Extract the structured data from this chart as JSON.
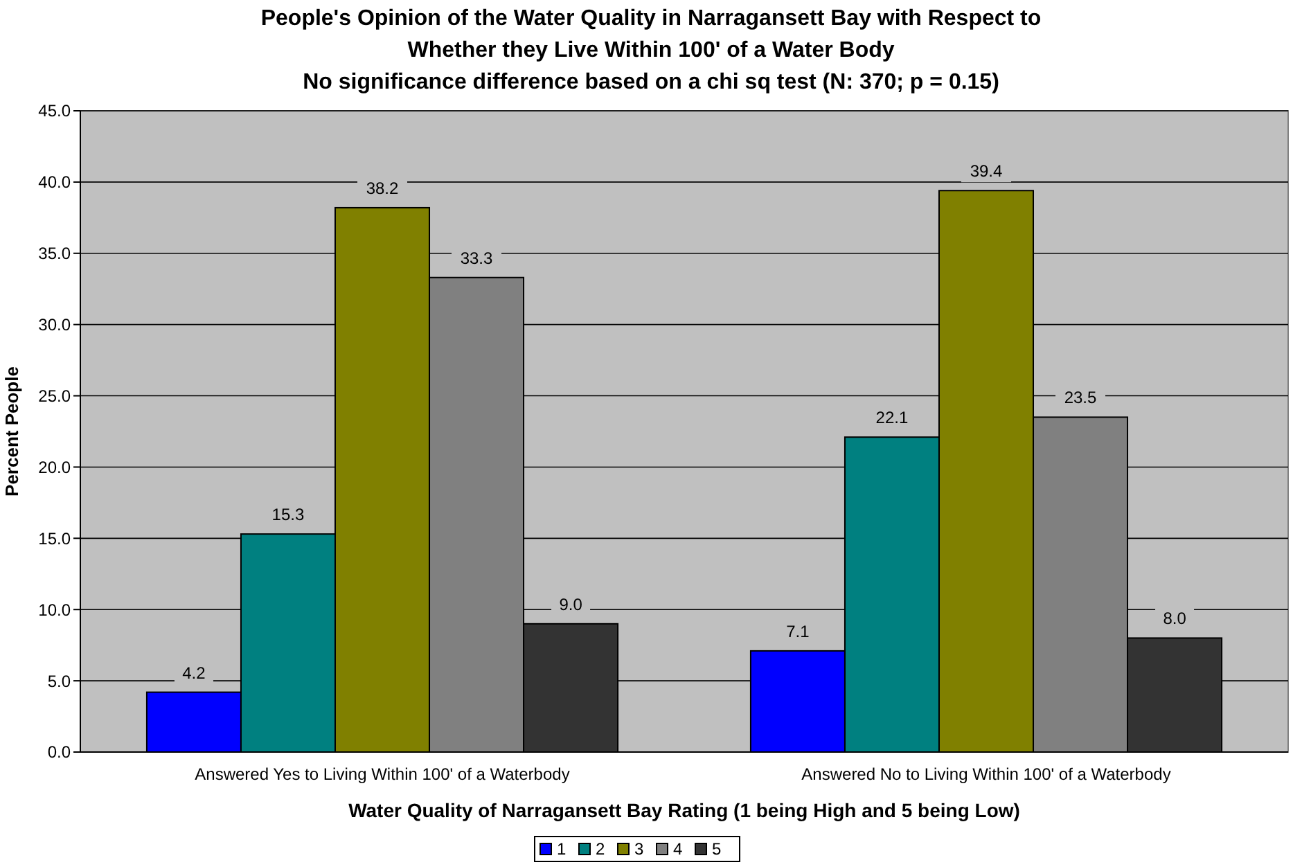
{
  "chart_data": {
    "type": "bar",
    "title": "People's Opinion of the Water Quality in Narragansett Bay with Respect to Whether they Live Within 100' of a Water Body",
    "subtitle": "No significance difference based on a chi sq test (N: 370; p = 0.15)",
    "xlabel": "Water Quality of Narragansett Bay Rating (1 being High and 5 being Low)",
    "ylabel": "Percent People",
    "categories": [
      "Answered Yes to Living Within 100' of a Waterbody",
      "Answered No to Living Within 100' of a Waterbody"
    ],
    "series": [
      {
        "name": "1",
        "color": "#0000ff",
        "values": [
          4.2,
          7.1
        ],
        "value_labels": [
          "4.2",
          "7.1"
        ]
      },
      {
        "name": "2",
        "color": "#008080",
        "values": [
          15.3,
          22.1
        ],
        "value_labels": [
          "15.3",
          "22.1"
        ]
      },
      {
        "name": "3",
        "color": "#808000",
        "values": [
          38.2,
          39.4
        ],
        "value_labels": [
          "38.2",
          "39.4"
        ]
      },
      {
        "name": "4",
        "color": "#808080",
        "values": [
          33.3,
          23.5
        ],
        "value_labels": [
          "33.3",
          "23.5"
        ]
      },
      {
        "name": "5",
        "color": "#333333",
        "values": [
          9,
          8
        ],
        "value_labels": [
          "9.0",
          "8.0"
        ]
      }
    ],
    "ylim": [
      0,
      45
    ],
    "yticks": [
      {
        "value": 0,
        "label": "0.0"
      },
      {
        "value": 5,
        "label": "5.0"
      },
      {
        "value": 10,
        "label": "10.0"
      },
      {
        "value": 15,
        "label": "15.0"
      },
      {
        "value": 20,
        "label": "20.0"
      },
      {
        "value": 25,
        "label": "25.0"
      },
      {
        "value": 30,
        "label": "30.0"
      },
      {
        "value": 35,
        "label": "35.0"
      },
      {
        "value": 40,
        "label": "40.0"
      },
      {
        "value": 45,
        "label": "45.0"
      }
    ],
    "grid": "y",
    "legend": "bottom"
  }
}
